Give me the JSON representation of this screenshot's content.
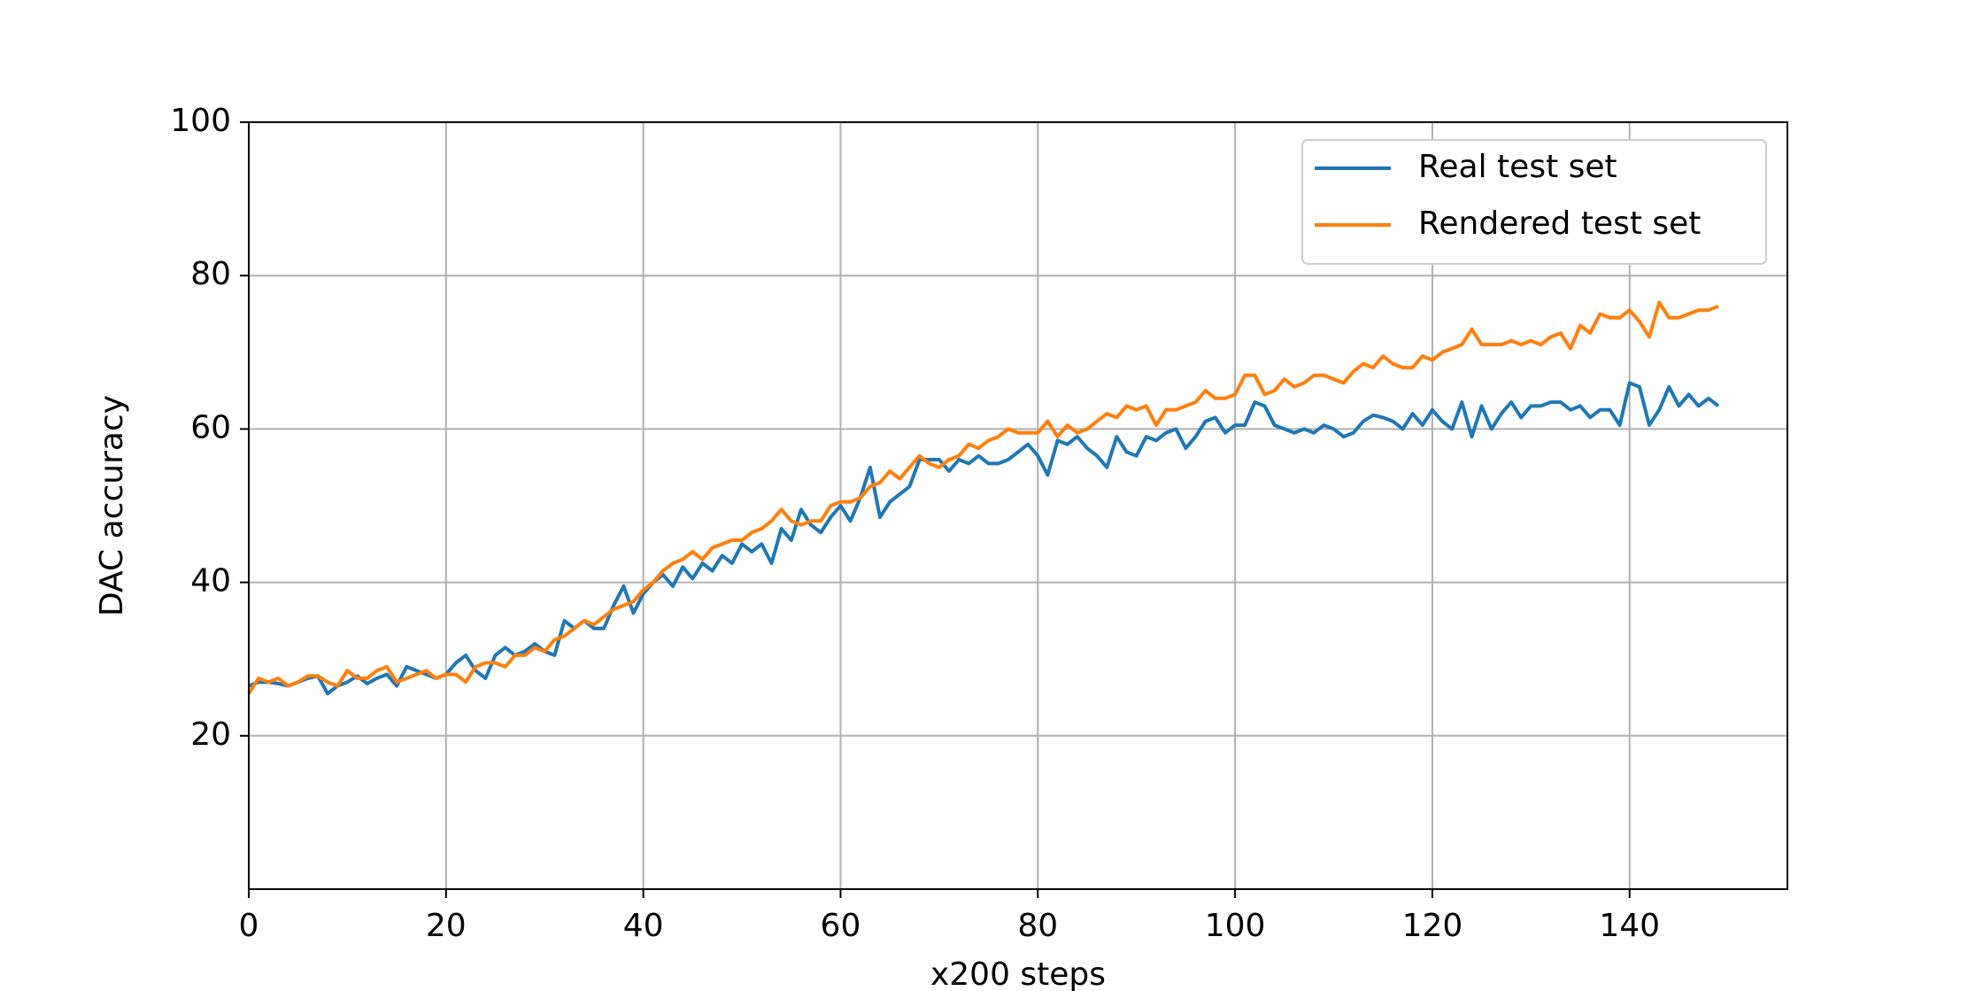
{
  "chart_data": {
    "type": "line",
    "title": "",
    "xlabel": "x200 steps",
    "ylabel": "DAC accuracy",
    "xlim": [
      0,
      156
    ],
    "ylim": [
      0,
      100
    ],
    "x_ticks": [
      "0",
      "20",
      "40",
      "60",
      "80",
      "100",
      "120",
      "140"
    ],
    "y_ticks": [
      "20",
      "40",
      "60",
      "80",
      "100"
    ],
    "grid": true,
    "legend_position": "top-right",
    "series": [
      {
        "name": "Real test set",
        "color": "#1f77b4",
        "x_start": 0,
        "values": [
          26.5,
          27.0,
          27.0,
          26.8,
          26.5,
          27.0,
          27.5,
          27.8,
          25.5,
          26.5,
          27.0,
          27.8,
          26.8,
          27.5,
          28.0,
          26.5,
          29.0,
          28.5,
          28.0,
          27.5,
          28.0,
          29.5,
          30.5,
          28.5,
          27.5,
          30.5,
          31.5,
          30.5,
          31.0,
          32.0,
          31.0,
          30.5,
          35.0,
          34.0,
          35.0,
          34.0,
          34.0,
          37.0,
          39.5,
          36.0,
          38.5,
          40.0,
          41.0,
          39.5,
          42.0,
          40.5,
          42.5,
          41.5,
          43.5,
          42.5,
          45.0,
          44.0,
          45.0,
          42.5,
          47.0,
          45.5,
          49.5,
          47.5,
          46.5,
          48.5,
          50.0,
          48.0,
          51.0,
          55.0,
          48.5,
          50.5,
          51.5,
          52.5,
          56.0,
          56.0,
          56.0,
          54.5,
          56.0,
          55.5,
          56.5,
          55.5,
          55.5,
          56.0,
          57.0,
          58.0,
          56.5,
          54.0,
          58.5,
          58.0,
          59.0,
          57.5,
          56.5,
          55.0,
          59.0,
          57.0,
          56.5,
          59.0,
          58.5,
          59.5,
          60.0,
          57.5,
          59.0,
          61.0,
          61.5,
          59.5,
          60.5,
          60.5,
          63.5,
          63.0,
          60.5,
          60.0,
          59.5,
          60.0,
          59.5,
          60.5,
          60.0,
          59.0,
          59.5,
          61.0,
          61.8,
          61.5,
          61.0,
          60.0,
          62.0,
          60.5,
          62.5,
          61.0,
          60.0,
          63.5,
          59.0,
          63.0,
          60.0,
          62.0,
          63.5,
          61.5,
          63.0,
          63.0,
          63.5,
          63.5,
          62.5,
          63.0,
          61.5,
          62.5,
          62.5,
          60.5,
          66.0,
          65.5,
          60.5,
          62.5,
          65.5,
          63.0,
          64.5,
          63.0,
          64.0,
          63.0
        ]
      },
      {
        "name": "Rendered test set",
        "color": "#ff7f0e",
        "x_start": 0,
        "values": [
          25.5,
          27.5,
          27.0,
          27.5,
          26.5,
          27.0,
          27.8,
          27.8,
          27.0,
          26.5,
          28.5,
          27.5,
          27.5,
          28.5,
          29.0,
          27.0,
          27.5,
          28.0,
          28.5,
          27.5,
          28.0,
          28.0,
          27.0,
          29.0,
          29.5,
          29.5,
          29.0,
          30.5,
          30.5,
          31.5,
          31.0,
          32.5,
          33.0,
          34.0,
          35.0,
          34.5,
          35.5,
          36.5,
          37.0,
          37.5,
          39.0,
          40.0,
          41.5,
          42.5,
          43.0,
          44.0,
          43.0,
          44.5,
          45.0,
          45.5,
          45.5,
          46.5,
          47.0,
          48.0,
          49.5,
          48.0,
          47.5,
          48.0,
          48.0,
          50.0,
          50.5,
          50.5,
          51.0,
          52.5,
          53.0,
          54.5,
          53.5,
          55.0,
          56.5,
          55.5,
          55.0,
          56.0,
          56.5,
          58.0,
          57.5,
          58.5,
          59.0,
          60.0,
          59.5,
          59.5,
          59.5,
          61.0,
          59.0,
          60.5,
          59.5,
          60.0,
          61.0,
          62.0,
          61.5,
          63.0,
          62.5,
          63.0,
          60.5,
          62.5,
          62.5,
          63.0,
          63.5,
          65.0,
          64.0,
          64.0,
          64.5,
          67.0,
          67.0,
          64.5,
          65.0,
          66.5,
          65.5,
          66.0,
          67.0,
          67.0,
          66.5,
          66.0,
          67.5,
          68.5,
          68.0,
          69.5,
          68.5,
          68.0,
          68.0,
          69.5,
          69.0,
          70.0,
          70.5,
          71.0,
          73.0,
          71.0,
          71.0,
          71.0,
          71.5,
          71.0,
          71.5,
          71.0,
          72.0,
          72.5,
          70.5,
          73.5,
          72.5,
          75.0,
          74.5,
          74.5,
          75.5,
          74.0,
          72.0,
          76.5,
          74.5,
          74.5,
          75.0,
          75.5,
          75.5,
          76.0
        ]
      }
    ]
  }
}
